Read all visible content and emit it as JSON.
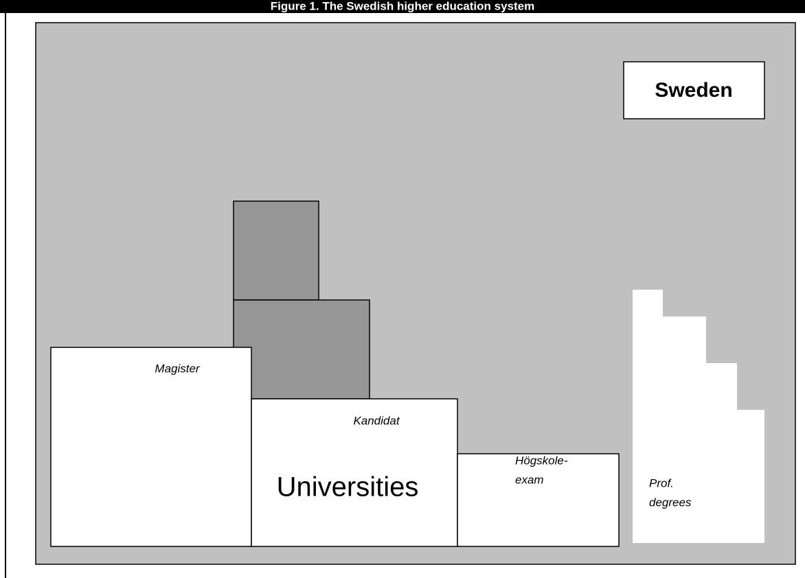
{
  "header": {
    "title": "Figure 1. The Swedish higher education system"
  },
  "diagram": {
    "country": "Sweden",
    "main_label": "Universities",
    "levels": [
      "Magister",
      "Kandidat"
    ],
    "hogskole": [
      "Högskole-",
      "exam"
    ],
    "prof": [
      "Prof.",
      "degrees"
    ]
  }
}
